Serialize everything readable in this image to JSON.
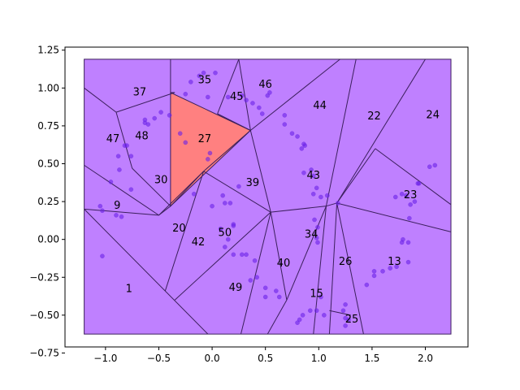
{
  "chart_data": {
    "type": "scatter",
    "title": "",
    "xlabel": "",
    "ylabel": "",
    "xlim": [
      -1.38,
      2.4
    ],
    "ylim": [
      -0.71,
      1.27
    ],
    "xticks": [
      "−1.0",
      "−0.5",
      "0.0",
      "0.5",
      "1.0",
      "1.5",
      "2.0"
    ],
    "xtick_values": [
      -1.0,
      -0.5,
      0.0,
      0.5,
      1.0,
      1.5,
      2.0
    ],
    "yticks": [
      "−0.75",
      "−0.50",
      "−0.25",
      "0.00",
      "0.25",
      "0.50",
      "0.75",
      "1.00",
      "1.25"
    ],
    "ytick_values": [
      -0.75,
      -0.5,
      -0.25,
      0.0,
      0.25,
      0.5,
      0.75,
      1.0,
      1.25
    ],
    "grid": false,
    "legend": "none",
    "colors": {
      "region_fill": "#bf80ff",
      "highlight_fill": "#ff8080",
      "edge": "#3b1f5c",
      "point": "#6a22e8"
    },
    "bounding_box": {
      "x": [
        -1.2,
        2.24
      ],
      "y": [
        -0.625,
        1.19
      ]
    },
    "highlight_region": {
      "label": "27",
      "vertices": [
        [
          -0.39,
          0.97
        ],
        [
          0.36,
          0.72
        ],
        [
          -0.39,
          0.22
        ]
      ]
    },
    "edges": [
      [
        [
          -1.2,
          1.0
        ],
        [
          -0.9,
          0.84
        ]
      ],
      [
        [
          -0.9,
          0.84
        ],
        [
          -0.35,
          0.97
        ]
      ],
      [
        [
          -0.35,
          0.97
        ],
        [
          -0.39,
          0.97
        ]
      ],
      [
        [
          -0.9,
          0.84
        ],
        [
          -0.75,
          0.47
        ]
      ],
      [
        [
          -0.75,
          0.47
        ],
        [
          -0.39,
          0.22
        ]
      ],
      [
        [
          -1.2,
          0.49
        ],
        [
          -0.5,
          0.16
        ]
      ],
      [
        [
          -0.5,
          0.16
        ],
        [
          -0.39,
          0.22
        ]
      ],
      [
        [
          -1.2,
          0.2
        ],
        [
          -0.5,
          0.16
        ]
      ],
      [
        [
          -1.2,
          0.2
        ],
        [
          -0.04,
          -0.625
        ]
      ],
      [
        [
          -0.5,
          0.16
        ],
        [
          -0.08,
          0.45
        ]
      ],
      [
        [
          -0.39,
          0.22
        ],
        [
          -0.08,
          0.45
        ]
      ],
      [
        [
          -0.08,
          0.45
        ],
        [
          -0.44,
          -0.34
        ]
      ],
      [
        [
          -0.08,
          0.45
        ],
        [
          0.36,
          0.72
        ]
      ],
      [
        [
          -0.39,
          0.97
        ],
        [
          -0.39,
          1.19
        ]
      ],
      [
        [
          0.36,
          0.72
        ],
        [
          0.25,
          1.19
        ]
      ],
      [
        [
          0.36,
          0.72
        ],
        [
          0.05,
          0.83
        ]
      ],
      [
        [
          0.05,
          0.83
        ],
        [
          0.25,
          1.19
        ]
      ],
      [
        [
          0.36,
          0.72
        ],
        [
          1.2,
          1.19
        ]
      ],
      [
        [
          0.36,
          0.72
        ],
        [
          0.55,
          0.18
        ]
      ],
      [
        [
          -0.08,
          0.45
        ],
        [
          0.55,
          0.18
        ]
      ],
      [
        [
          0.55,
          0.18
        ],
        [
          -0.35,
          -0.4
        ]
      ],
      [
        [
          0.55,
          0.18
        ],
        [
          0.7,
          -0.4
        ]
      ],
      [
        [
          0.55,
          0.18
        ],
        [
          1.07,
          0.22
        ]
      ],
      [
        [
          1.07,
          0.22
        ],
        [
          1.35,
          1.19
        ]
      ],
      [
        [
          1.07,
          0.22
        ],
        [
          0.7,
          -0.4
        ]
      ],
      [
        [
          1.07,
          0.22
        ],
        [
          0.95,
          -0.625
        ]
      ],
      [
        [
          1.07,
          0.22
        ],
        [
          1.17,
          0.24
        ]
      ],
      [
        [
          1.17,
          0.24
        ],
        [
          2.0,
          1.19
        ]
      ],
      [
        [
          1.17,
          0.24
        ],
        [
          1.53,
          0.6
        ]
      ],
      [
        [
          1.53,
          0.6
        ],
        [
          2.24,
          0.23
        ]
      ],
      [
        [
          1.17,
          0.24
        ],
        [
          2.24,
          0.05
        ]
      ],
      [
        [
          1.17,
          0.24
        ],
        [
          1.42,
          -0.625
        ]
      ],
      [
        [
          1.17,
          0.24
        ],
        [
          1.1,
          -0.625
        ]
      ],
      [
        [
          0.55,
          0.18
        ],
        [
          0.27,
          -0.625
        ]
      ],
      [
        [
          0.7,
          -0.4
        ],
        [
          0.52,
          -0.625
        ]
      ],
      [
        [
          1.1,
          -0.47
        ],
        [
          1.3,
          -0.5
        ]
      ]
    ],
    "points": [
      [
        -1.05,
        0.22
      ],
      [
        -1.03,
        0.19
      ],
      [
        -0.95,
        0.38
      ],
      [
        -0.9,
        0.16
      ],
      [
        -0.87,
        0.46
      ],
      [
        -0.85,
        0.15
      ],
      [
        -1.03,
        -0.11
      ],
      [
        -0.88,
        0.55
      ],
      [
        -0.82,
        0.62
      ],
      [
        -0.8,
        0.62
      ],
      [
        -0.76,
        0.33
      ],
      [
        -0.76,
        0.55
      ],
      [
        -0.63,
        0.77
      ],
      [
        -0.63,
        0.79
      ],
      [
        -0.6,
        0.76
      ],
      [
        -0.54,
        0.8
      ],
      [
        -0.48,
        0.84
      ],
      [
        -0.4,
        0.82
      ],
      [
        -0.3,
        0.7
      ],
      [
        -0.25,
        0.64
      ],
      [
        -0.25,
        0.96
      ],
      [
        -0.2,
        1.04
      ],
      [
        -0.17,
        0.3
      ],
      [
        -0.12,
        1.08
      ],
      [
        -0.08,
        1.1
      ],
      [
        -0.04,
        0.94
      ],
      [
        -0.02,
        0.57
      ],
      [
        -0.04,
        0.53
      ],
      [
        0.0,
        0.22
      ],
      [
        0.03,
        1.1
      ],
      [
        0.1,
        0.29
      ],
      [
        0.12,
        0.24
      ],
      [
        0.15,
        0.94
      ],
      [
        0.17,
        0.24
      ],
      [
        0.2,
        0.1
      ],
      [
        0.2,
        0.09
      ],
      [
        0.25,
        0.35
      ],
      [
        0.28,
        0.95
      ],
      [
        0.32,
        0.92
      ],
      [
        0.38,
        0.9
      ],
      [
        0.44,
        0.87
      ],
      [
        0.47,
        0.83
      ],
      [
        0.52,
        0.95
      ],
      [
        0.54,
        0.97
      ],
      [
        0.08,
        0.07
      ],
      [
        0.15,
        0.0
      ],
      [
        0.12,
        -0.05
      ],
      [
        0.2,
        -0.1
      ],
      [
        0.28,
        -0.1
      ],
      [
        0.32,
        -0.1
      ],
      [
        0.4,
        -0.14
      ],
      [
        0.42,
        -0.25
      ],
      [
        0.36,
        -0.27
      ],
      [
        0.5,
        -0.32
      ],
      [
        0.5,
        -0.38
      ],
      [
        0.6,
        -0.34
      ],
      [
        0.63,
        -0.38
      ],
      [
        0.68,
        0.82
      ],
      [
        0.68,
        0.76
      ],
      [
        0.75,
        0.7
      ],
      [
        0.8,
        0.68
      ],
      [
        0.84,
        0.6
      ],
      [
        0.87,
        0.62
      ],
      [
        0.86,
        0.63
      ],
      [
        0.86,
        0.44
      ],
      [
        0.93,
        0.46
      ],
      [
        0.95,
        0.42
      ],
      [
        0.98,
        0.34
      ],
      [
        0.95,
        0.3
      ],
      [
        1.02,
        0.28
      ],
      [
        0.96,
        0.13
      ],
      [
        0.99,
        0.08
      ],
      [
        0.98,
        0.01
      ],
      [
        0.99,
        -0.02
      ],
      [
        1.08,
        0.29
      ],
      [
        1.18,
        0.24
      ],
      [
        1.25,
        -0.43
      ],
      [
        1.23,
        -0.47
      ],
      [
        1.25,
        -0.52
      ],
      [
        1.28,
        -0.53
      ],
      [
        1.25,
        -0.57
      ],
      [
        1.05,
        -0.5
      ],
      [
        0.98,
        -0.47
      ],
      [
        0.92,
        -0.47
      ],
      [
        0.85,
        -0.5
      ],
      [
        0.82,
        -0.53
      ],
      [
        0.8,
        -0.55
      ],
      [
        1.02,
        -0.38
      ],
      [
        1.45,
        -0.3
      ],
      [
        1.52,
        -0.24
      ],
      [
        1.52,
        -0.21
      ],
      [
        1.6,
        -0.21
      ],
      [
        1.67,
        -0.19
      ],
      [
        1.73,
        -0.18
      ],
      [
        1.78,
        -0.02
      ],
      [
        1.79,
        0.0
      ],
      [
        1.84,
        -0.02
      ],
      [
        1.84,
        -0.15
      ],
      [
        1.85,
        0.14
      ],
      [
        1.86,
        0.23
      ],
      [
        1.9,
        0.25
      ],
      [
        1.93,
        0.37
      ],
      [
        1.94,
        0.37
      ],
      [
        2.04,
        0.48
      ],
      [
        2.09,
        0.49
      ],
      [
        1.82,
        0.29
      ],
      [
        1.78,
        0.3
      ],
      [
        1.72,
        0.28
      ]
    ],
    "region_labels": [
      {
        "text": "1",
        "x": -0.78,
        "y": -0.33
      },
      {
        "text": "9",
        "x": -0.89,
        "y": 0.22
      },
      {
        "text": "13",
        "x": 1.71,
        "y": -0.15
      },
      {
        "text": "15",
        "x": 0.98,
        "y": -0.36
      },
      {
        "text": "20",
        "x": -0.31,
        "y": 0.07
      },
      {
        "text": "22",
        "x": 1.52,
        "y": 0.81
      },
      {
        "text": "23",
        "x": 1.86,
        "y": 0.29
      },
      {
        "text": "24",
        "x": 2.07,
        "y": 0.82
      },
      {
        "text": "25",
        "x": 1.31,
        "y": -0.53
      },
      {
        "text": "26",
        "x": 1.25,
        "y": -0.15
      },
      {
        "text": "27",
        "x": -0.07,
        "y": 0.66
      },
      {
        "text": "30",
        "x": -0.48,
        "y": 0.39
      },
      {
        "text": "35",
        "x": -0.07,
        "y": 1.05
      },
      {
        "text": "37",
        "x": -0.68,
        "y": 0.97
      },
      {
        "text": "39",
        "x": 0.38,
        "y": 0.37
      },
      {
        "text": "40",
        "x": 0.67,
        "y": -0.16
      },
      {
        "text": "42",
        "x": -0.13,
        "y": -0.02
      },
      {
        "text": "43",
        "x": 0.95,
        "y": 0.42
      },
      {
        "text": "44",
        "x": 1.01,
        "y": 0.88
      },
      {
        "text": "45",
        "x": 0.23,
        "y": 0.94
      },
      {
        "text": "46",
        "x": 0.5,
        "y": 1.02
      },
      {
        "text": "47",
        "x": -0.93,
        "y": 0.66
      },
      {
        "text": "48",
        "x": -0.66,
        "y": 0.68
      },
      {
        "text": "49",
        "x": 0.22,
        "y": -0.32
      },
      {
        "text": "50",
        "x": 0.12,
        "y": 0.04
      },
      {
        "text": "34",
        "x": 0.93,
        "y": 0.03
      }
    ]
  }
}
